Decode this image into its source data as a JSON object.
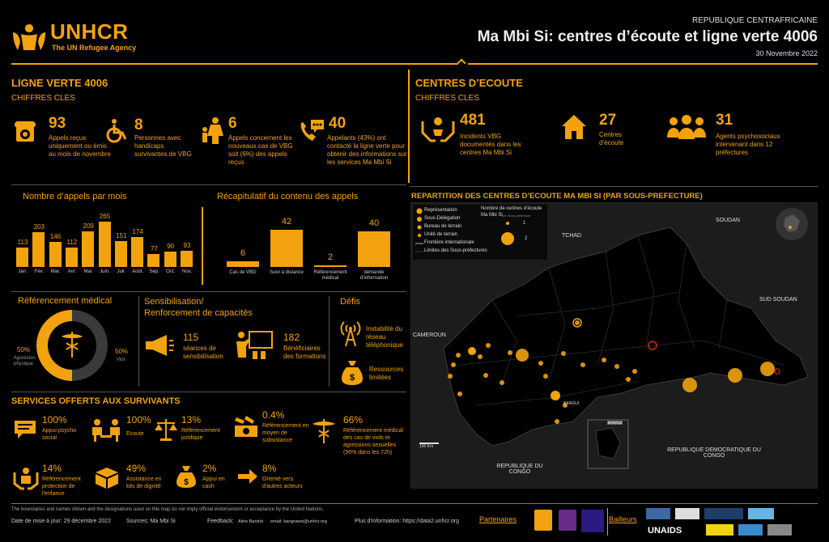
{
  "header": {
    "logo_text": "UNHCR",
    "logo_sub": "The UN Refugee Agency",
    "country": "REPUBLIQUE CENTRAFRICAINE",
    "title": "Ma Mbi Si: centres d’écoute et ligne verte 4006",
    "date": "30 Novembre 2022"
  },
  "ligne": {
    "title": "LIGNE VERTE 4006",
    "subtitle": "CHIFFRES CLES",
    "stats": [
      {
        "icon": "phone-icon",
        "value": "93",
        "text": "Appels reçus uniquement ou émis au mois de novembre"
      },
      {
        "icon": "wheelchair-icon",
        "value": "8",
        "text": "Personnes avec handicaps survivantes de VBG"
      },
      {
        "icon": "woman-child-icon",
        "value": "6",
        "text": "Appels concernent les nouveaux cas de VBG soit (6%) des appels reçus"
      },
      {
        "icon": "speech-phone-icon",
        "value": "40",
        "text": "Appelants (43%) ont contacté la ligne verte pour obtenir des informations sur les services Ma Mbi Si"
      }
    ]
  },
  "centres": {
    "title": "CENTRES D’ECOUTE",
    "subtitle": "CHIFFRES CLES",
    "stats": [
      {
        "icon": "hands-icon",
        "value": "481",
        "text": "Incidents VBG documentés dans les centres Ma Mbi Si"
      },
      {
        "icon": "house-icon",
        "value": "27",
        "text": "Centres d’écoute"
      },
      {
        "icon": "group-icon",
        "value": "31",
        "text": "Agents psychosociaux intervenant dans 12 préfectures"
      }
    ]
  },
  "chart_data": [
    {
      "type": "bar",
      "title": "Nombre d’appels par mois",
      "categories": [
        "Jan.",
        "Fév.",
        "Mar.",
        "Avr.",
        "Mai.",
        "Juin.",
        "Juil.",
        "Août.",
        "Sep.",
        "Oct.",
        "Nov."
      ],
      "values": [
        113,
        203,
        146,
        112,
        209,
        265,
        151,
        174,
        77,
        90,
        93
      ],
      "ylim": [
        0,
        265
      ]
    },
    {
      "type": "bar",
      "title": "Récapitulatif du contenu des appels",
      "categories": [
        "Cas de VBG",
        "Suivi à distance",
        "Référencement médical",
        "demande d’information"
      ],
      "values": [
        6,
        42,
        2,
        40
      ],
      "ylim": [
        0,
        42
      ]
    },
    {
      "type": "pie",
      "title": "Référencement médical",
      "categories": [
        "Agression physique",
        "Viol"
      ],
      "values": [
        50,
        50
      ],
      "labels": [
        "50%",
        "50%"
      ]
    }
  ],
  "sensib": {
    "title1": "Sensibilisation/",
    "title2": "Renforcement de capacités",
    "items": [
      {
        "icon": "megaphone-icon",
        "value": "115",
        "text": "séances de sensibilisation"
      },
      {
        "icon": "training-icon",
        "value": "182",
        "text": "Bénéficiaires des formations"
      }
    ]
  },
  "defis": {
    "title": "Défis",
    "items": [
      {
        "icon": "antenna-icon",
        "text": "Instabilité du réseau téléphonique"
      },
      {
        "icon": "money-bag-icon",
        "text": "Ressources limitées"
      }
    ]
  },
  "services": {
    "title": "SERVICES OFFERTS AUX SURVIVANTS",
    "items": [
      {
        "icon": "chat-icon",
        "pct": "100%",
        "text": "Appui psycho social"
      },
      {
        "icon": "listening-icon",
        "pct": "100%",
        "text": "Ecoute"
      },
      {
        "icon": "scale-icon",
        "pct": "13%",
        "text": "Référencement juridique"
      },
      {
        "icon": "cash-icon",
        "pct": "0.4%",
        "text": "Référencement en moyen de subsistance"
      },
      {
        "icon": "medical-icon",
        "pct": "66%",
        "text": "Référencement médical des cas de viols et agressions sexuelles (56% dans les 72h)"
      },
      {
        "icon": "protection-icon",
        "pct": "14%",
        "text": "Référencement protection de l'enfance"
      },
      {
        "icon": "kit-icon",
        "pct": "49%",
        "text": "Assistance en kits de dignité"
      },
      {
        "icon": "coin-bag-icon",
        "pct": "2%",
        "text": "Appui en cash"
      },
      {
        "icon": "arrow-icon",
        "pct": "8%",
        "text": "Orienté vers d'autres acteurs"
      }
    ]
  },
  "map": {
    "title": "REPARTITION DES CENTRES D’ECOUTE MA MBI SI (PAR SOUS-PREFECTURE)",
    "legend": [
      "Représentation",
      "Sous-Délégation",
      "Bureau de terrain",
      "Unité de terrain",
      "Frontière internationale",
      "Limites des Sous-préfectures"
    ],
    "legend2_title": "Nombre de centres d’écoute",
    "legend2_sub": "Ma Mbi Si",
    "legend2_note": "par Sous-préfecture",
    "legend2_values": [
      "1",
      "2"
    ],
    "countries": [
      "TCHAD",
      "SOUDAN",
      "SUD SOUDAN",
      "CAMEROUN",
      "REPUBLIQUE DEMOCRATIQUE DU CONGO",
      "REPUBLIQUE DU CONGO"
    ],
    "inset_label": "BANGUI",
    "scale": "100 Km",
    "city_bangui": "BANGUI"
  },
  "footer": {
    "disclaimer": "The boundaries and names shown and the designations used on this map do not imply official endorsement or acceptance by the United Nations.",
    "update": "Date de mise à jour: 29 décembre 2022",
    "sources": "Sources: Ma Mbi Si",
    "feedback_label": "Feedback:",
    "feedback_name": "Aline Bandot",
    "feedback_email": "email: bangrawxi@unhcr.org",
    "info": "Plus d'information: https://data2.unhcr.org",
    "partners": "Partenaires",
    "donors": "Bailleurs",
    "unaids": "UNAIDS"
  },
  "colors": {
    "accent": "#f2a20c",
    "bg": "#000000"
  }
}
